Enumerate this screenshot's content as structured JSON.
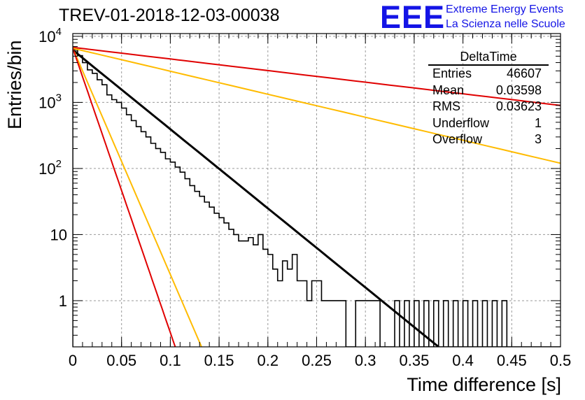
{
  "title": "TREV-01-2018-12-03-00038",
  "logo": {
    "mark": "EEE",
    "line1": "Extreme Energy Events",
    "line2": "La Scienza nelle Scuole"
  },
  "stats_box": {
    "name": "DeltaTime",
    "rows": [
      {
        "label": "Entries",
        "value": "46607"
      },
      {
        "label": "Mean",
        "value": "0.03598"
      },
      {
        "label": "RMS",
        "value": "0.03623"
      },
      {
        "label": "Underflow",
        "value": "1"
      },
      {
        "label": "Overflow",
        "value": "3"
      }
    ]
  },
  "chart_data": {
    "type": "line",
    "xlabel": "Time difference [s]",
    "ylabel": "Entries/bin",
    "xlim": [
      0,
      0.5
    ],
    "ylim": [
      0.2,
      11000
    ],
    "yscale": "log",
    "grid": true,
    "x_ticks": [
      "0",
      "0.05",
      "0.1",
      "0.15",
      "0.2",
      "0.25",
      "0.3",
      "0.35",
      "0.4",
      "0.45",
      "0.5"
    ],
    "y_ticks": [
      {
        "value": 1,
        "label": "1"
      },
      {
        "value": 10,
        "label": "10"
      },
      {
        "value": 100,
        "label": "10^2"
      },
      {
        "value": 1000,
        "label": "10^3"
      },
      {
        "value": 10000,
        "label": "10^4"
      }
    ],
    "histogram": {
      "bin_width": 0.005,
      "counts": [
        6300,
        5100,
        4000,
        3100,
        2750,
        2200,
        1850,
        1300,
        1100,
        1000,
        820,
        650,
        530,
        430,
        360,
        300,
        240,
        200,
        175,
        140,
        125,
        105,
        88,
        70,
        55,
        45,
        38,
        31,
        26,
        21,
        18,
        15,
        12,
        10,
        8,
        8,
        9,
        7,
        10,
        6,
        5,
        3,
        2,
        4,
        3,
        5,
        2,
        2,
        1,
        2,
        2,
        1,
        1,
        1,
        1,
        1,
        0,
        0,
        1,
        1,
        1,
        1,
        1,
        0,
        0,
        0,
        1,
        0,
        0,
        0,
        0,
        0,
        0,
        0,
        0,
        0,
        0,
        0,
        0,
        0,
        0,
        0,
        0,
        0,
        0,
        0,
        0,
        0,
        0,
        0,
        0,
        0,
        0,
        0,
        0,
        0,
        0,
        0,
        0,
        0
      ],
      "fill_gaps_with_one_at": [
        0.34,
        0.35,
        0.36,
        0.37,
        0.38,
        0.39,
        0.4,
        0.41,
        0.42,
        0.43,
        0.44
      ]
    },
    "series": [
      {
        "color": "#000000",
        "x": [
          0.0,
          0.375
        ],
        "y": [
          6200,
          0.2
        ]
      },
      {
        "color": "#e00000",
        "x": [
          0.0,
          0.5
        ],
        "y": [
          6800,
          900
        ]
      },
      {
        "color": "#ffbb00",
        "x": [
          0.0,
          0.5
        ],
        "y": [
          6600,
          120
        ]
      },
      {
        "color": "#ffbb00",
        "x": [
          0.0,
          0.132
        ],
        "y": [
          6600,
          0.2
        ]
      },
      {
        "color": "#e00000",
        "x": [
          0.0,
          0.105
        ],
        "y": [
          6600,
          0.2
        ]
      }
    ]
  }
}
